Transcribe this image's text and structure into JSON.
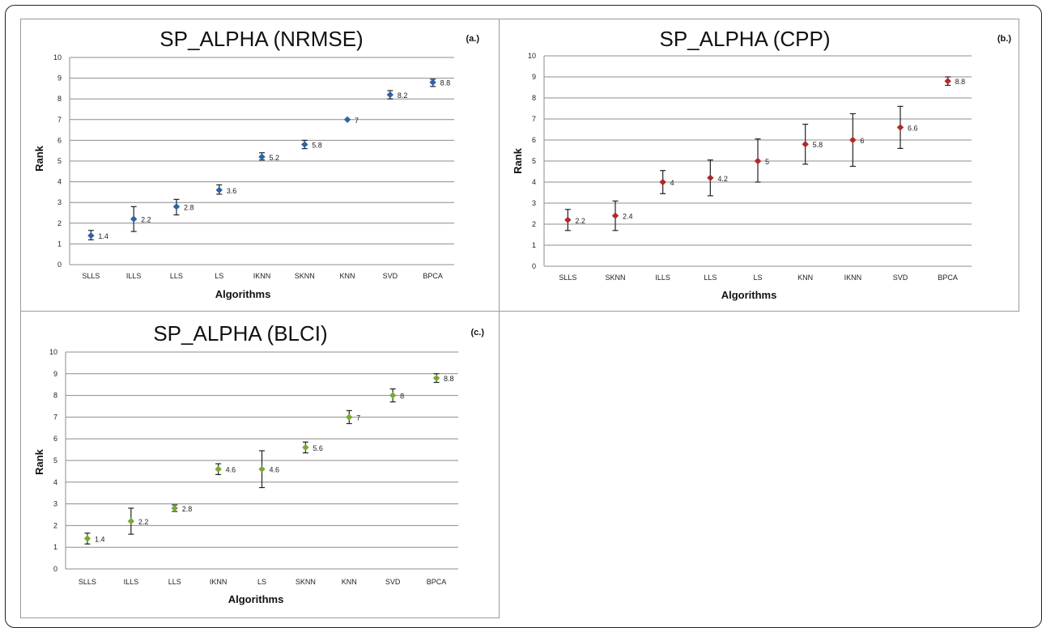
{
  "chart_data": [
    {
      "type": "scatter",
      "title": "SP_ALPHA (NRMSE)",
      "panel_label": "(a.)",
      "xlabel": "Algorithms",
      "ylabel": "Rank",
      "ylim": [
        0,
        10
      ],
      "y_ticks": [
        "0",
        "1",
        "2",
        "3",
        "4",
        "5",
        "6",
        "7",
        "8",
        "9",
        "10"
      ],
      "grid": true,
      "color": "#2e63a4",
      "categories": [
        "SLLS",
        "ILLS",
        "LLS",
        "LS",
        "IKNN",
        "SKNN",
        "KNN",
        "SVD",
        "BPCA"
      ],
      "values": [
        1.4,
        2.2,
        2.8,
        3.6,
        5.2,
        5.8,
        7,
        8.2,
        8.8
      ],
      "data_labels": [
        "1.4",
        "2.2",
        "2.8",
        "3.6",
        "5.2",
        "5.8",
        "7",
        "8.2",
        "8.8"
      ],
      "error_low": [
        1.2,
        1.6,
        2.4,
        3.4,
        5.05,
        5.6,
        7,
        8.0,
        8.6
      ],
      "error_high": [
        1.65,
        2.8,
        3.15,
        3.85,
        5.4,
        6.0,
        7,
        8.4,
        8.95
      ]
    },
    {
      "type": "scatter",
      "title": "SP_ALPHA (CPP)",
      "panel_label": "(b.)",
      "xlabel": "Algorithms",
      "ylabel": "Rank",
      "ylim": [
        0,
        10
      ],
      "y_ticks": [
        "0",
        "1",
        "2",
        "3",
        "4",
        "5",
        "6",
        "7",
        "8",
        "9",
        "10"
      ],
      "grid": true,
      "color": "#b02a2a",
      "categories": [
        "SLLS",
        "SKNN",
        "ILLS",
        "LLS",
        "LS",
        "KNN",
        "IKNN",
        "SVD",
        "BPCA"
      ],
      "values": [
        2.2,
        2.4,
        4,
        4.2,
        5,
        5.8,
        6,
        6.6,
        8.8
      ],
      "data_labels": [
        "2.2",
        "2.4",
        "4",
        "4.2",
        "5",
        "5.8",
        "6",
        "6.6",
        "8.8"
      ],
      "error_low": [
        1.7,
        1.7,
        3.45,
        3.35,
        4.0,
        4.85,
        4.75,
        5.6,
        8.6
      ],
      "error_high": [
        2.7,
        3.1,
        4.55,
        5.05,
        6.05,
        6.75,
        7.25,
        7.6,
        9.0
      ]
    },
    {
      "type": "scatter",
      "title": "SP_ALPHA (BLCI)",
      "panel_label": "(c.)",
      "xlabel": "Algorithms",
      "ylabel": "Rank",
      "ylim": [
        0,
        10
      ],
      "y_ticks": [
        "0",
        "1",
        "2",
        "3",
        "4",
        "5",
        "6",
        "7",
        "8",
        "9",
        "10"
      ],
      "grid": true,
      "color": "#7aa832",
      "categories": [
        "SLLS",
        "ILLS",
        "LLS",
        "IKNN",
        "LS",
        "SKNN",
        "KNN",
        "SVD",
        "BPCA"
      ],
      "values": [
        1.4,
        2.2,
        2.8,
        4.6,
        4.6,
        5.6,
        7,
        8,
        8.8
      ],
      "data_labels": [
        "1.4",
        "2.2",
        "2.8",
        "4.6",
        "4.6",
        "5.6",
        "7",
        "8",
        "8.8"
      ],
      "error_low": [
        1.15,
        1.6,
        2.65,
        4.35,
        3.75,
        5.35,
        6.7,
        7.7,
        8.6
      ],
      "error_high": [
        1.65,
        2.8,
        2.95,
        4.85,
        5.45,
        5.85,
        7.3,
        8.3,
        9.0
      ]
    }
  ]
}
